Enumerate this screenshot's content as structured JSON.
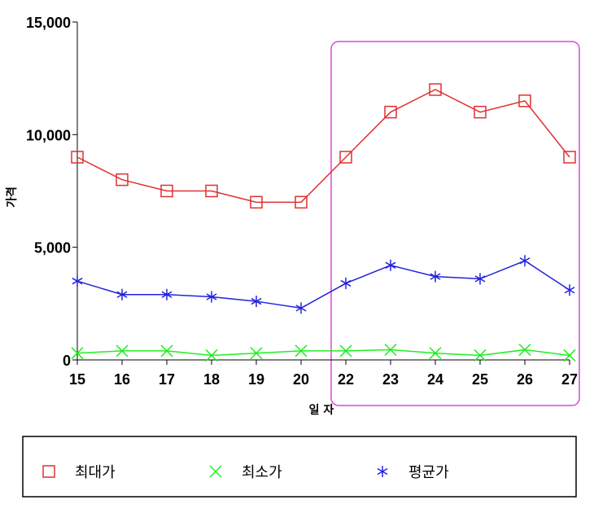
{
  "chart_data": {
    "type": "line",
    "categories": [
      "15",
      "16",
      "17",
      "18",
      "19",
      "20",
      "22",
      "23",
      "24",
      "25",
      "26",
      "27"
    ],
    "series": [
      {
        "name": "최대가",
        "values": [
          9000,
          8000,
          7500,
          7500,
          7000,
          7000,
          9000,
          11000,
          12000,
          11000,
          11500,
          9000
        ],
        "color": "#e03030",
        "marker": "square-icon"
      },
      {
        "name": "최소가",
        "values": [
          300,
          400,
          400,
          200,
          300,
          400,
          400,
          450,
          300,
          200,
          450,
          200
        ],
        "color": "#22ee22",
        "marker": "x-icon"
      },
      {
        "name": "평균가",
        "values": [
          3500,
          2900,
          2900,
          2800,
          2600,
          2300,
          3400,
          4200,
          3700,
          3600,
          4400,
          3100
        ],
        "color": "#2222dd",
        "marker": "asterisk-icon"
      }
    ],
    "xlabel": "일 자",
    "ylabel": "가격",
    "ylim": [
      0,
      15000
    ],
    "yticks": [
      "0",
      "5,000",
      "10,000",
      "15,000"
    ],
    "grid": false,
    "legend_placement": "bottom",
    "highlight": {
      "from_category": "22",
      "to_category": "27",
      "color": "#dd44dd"
    }
  }
}
